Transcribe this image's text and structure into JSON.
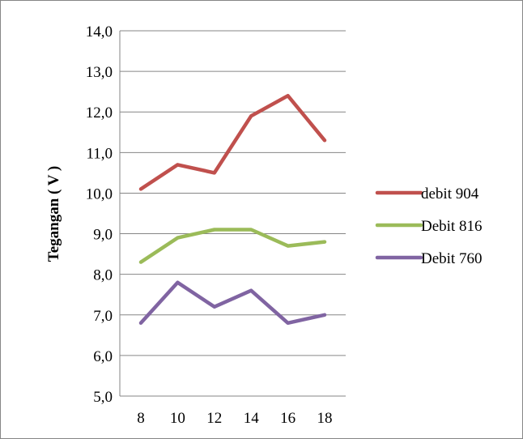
{
  "chart_data": {
    "type": "line",
    "title": "",
    "xlabel": "",
    "ylabel": "Tegangan ( V )",
    "x": [
      8,
      10,
      12,
      14,
      16,
      18
    ],
    "x_tick_labels": [
      "8",
      "10",
      "12",
      "14",
      "16",
      "18"
    ],
    "ylim": [
      5.0,
      14.0
    ],
    "y_tick_values": [
      5.0,
      6.0,
      7.0,
      8.0,
      9.0,
      10.0,
      11.0,
      12.0,
      13.0,
      14.0
    ],
    "y_tick_labels": [
      "5,0",
      "6,0",
      "7,0",
      "8,0",
      "9,0",
      "10,0",
      "11,0",
      "12,0",
      "13,0",
      "14,0"
    ],
    "grid": "horizontal",
    "legend_position": "right",
    "series": [
      {
        "name": "debit 904",
        "color": "#c0504d",
        "values": [
          10.1,
          10.7,
          10.5,
          11.9,
          12.4,
          11.3
        ]
      },
      {
        "name": "Debit 816",
        "color": "#9bbb59",
        "values": [
          8.3,
          8.9,
          9.1,
          9.1,
          8.7,
          8.8
        ]
      },
      {
        "name": "Debit 760",
        "color": "#8064a2",
        "values": [
          6.8,
          7.8,
          7.2,
          7.6,
          6.8,
          7.0
        ]
      }
    ]
  }
}
